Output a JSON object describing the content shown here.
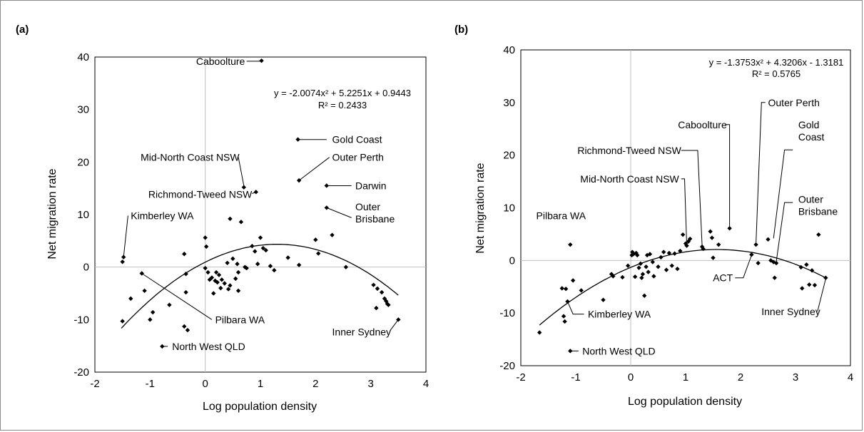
{
  "chart_data": [
    {
      "type": "scatter",
      "panel_label": "(a)",
      "xlabel": "Log population density",
      "ylabel": "Net migration rate",
      "xlim": [
        -2,
        4
      ],
      "ylim": [
        -20,
        40
      ],
      "xticks": [
        -2,
        -1,
        0,
        1,
        2,
        3,
        4
      ],
      "yticks": [
        -20,
        -10,
        0,
        10,
        20,
        30,
        40
      ],
      "trendline": {
        "kind": "polynomial-2",
        "coefficients": [
          -2.0074,
          5.2251,
          0.9443
        ],
        "x_range": [
          -1.52,
          3.5
        ],
        "equation": "y = -2.0074x² + 5.2251x + 0.9443",
        "r2": "R² = 0.2433"
      },
      "points": [
        [
          1.02,
          39.3
        ],
        [
          1.68,
          24.3
        ],
        [
          0.7,
          15.2
        ],
        [
          0.92,
          14.3
        ],
        [
          1.7,
          16.5
        ],
        [
          2.2,
          15.5
        ],
        [
          2.2,
          11.3
        ],
        [
          -1.5,
          1.0
        ],
        [
          -1.48,
          1.9
        ],
        [
          -1.5,
          -10.3
        ],
        [
          -1.35,
          -6.0
        ],
        [
          -1.15,
          -1.2
        ],
        [
          -1.1,
          -4.5
        ],
        [
          -1.0,
          -10.0
        ],
        [
          -0.95,
          -8.6
        ],
        [
          -0.65,
          -7.2
        ],
        [
          -0.38,
          2.5
        ],
        [
          -0.35,
          -1.3
        ],
        [
          -0.35,
          -4.8
        ],
        [
          -0.38,
          -11.3
        ],
        [
          -0.32,
          -12.0
        ],
        [
          0.0,
          5.6
        ],
        [
          0.02,
          3.9
        ],
        [
          0.0,
          -0.2
        ],
        [
          0.05,
          -1.0
        ],
        [
          0.08,
          -2.4
        ],
        [
          0.12,
          -2.0
        ],
        [
          0.15,
          -5.0
        ],
        [
          0.18,
          -2.6
        ],
        [
          0.2,
          -1.0
        ],
        [
          0.22,
          -2.9
        ],
        [
          0.25,
          -1.5
        ],
        [
          0.28,
          -4.0
        ],
        [
          0.3,
          -2.4
        ],
        [
          0.35,
          -3.1
        ],
        [
          0.4,
          0.8
        ],
        [
          0.42,
          -4.2
        ],
        [
          0.45,
          -3.5
        ],
        [
          0.45,
          9.2
        ],
        [
          0.5,
          1.6
        ],
        [
          0.55,
          -2.2
        ],
        [
          0.58,
          0.6
        ],
        [
          0.6,
          -1.0
        ],
        [
          0.6,
          -4.5
        ],
        [
          0.65,
          8.6
        ],
        [
          0.72,
          0.0
        ],
        [
          0.75,
          -0.2
        ],
        [
          0.85,
          4.0
        ],
        [
          0.9,
          3.0
        ],
        [
          0.95,
          0.6
        ],
        [
          1.0,
          5.6
        ],
        [
          1.05,
          3.6
        ],
        [
          1.1,
          3.2
        ],
        [
          1.18,
          0.2
        ],
        [
          1.25,
          -0.6
        ],
        [
          1.5,
          1.8
        ],
        [
          1.7,
          0.4
        ],
        [
          2.0,
          5.2
        ],
        [
          2.05,
          2.6
        ],
        [
          2.3,
          6.1
        ],
        [
          2.55,
          0.0
        ],
        [
          3.05,
          -3.4
        ],
        [
          3.1,
          -7.8
        ],
        [
          3.12,
          -4.1
        ],
        [
          3.2,
          -4.8
        ],
        [
          3.25,
          -6.0
        ],
        [
          3.28,
          -6.5
        ],
        [
          3.3,
          -7.0
        ],
        [
          3.32,
          -7.2
        ],
        [
          3.5,
          -10.0
        ],
        [
          -0.78,
          -15.1
        ]
      ],
      "annotations": [
        {
          "text": "Caboolture",
          "point": [
            1.02,
            39.3
          ],
          "label_at": [
            0.72,
            39.2
          ],
          "anchor": "end",
          "lines": [
            "Caboolture"
          ],
          "leader": [
            [
              0.75,
              39.2
            ],
            [
              1.0,
              39.2
            ]
          ]
        },
        {
          "text": "Gold Coast",
          "point": [
            1.68,
            24.3
          ],
          "label_at": [
            2.3,
            24.3
          ],
          "anchor": "start",
          "lines": [
            "Gold Coast"
          ],
          "leader": [
            [
              1.68,
              24.3
            ],
            [
              2.2,
              24.3
            ]
          ]
        },
        {
          "text": "Mid-North Coast NSW",
          "point": [
            0.7,
            15.2
          ],
          "label_at": [
            0.62,
            20.9
          ],
          "anchor": "end",
          "lines": [
            "Mid-North Coast NSW"
          ],
          "leader": [
            [
              0.6,
              20.9
            ],
            [
              0.7,
              15.5
            ]
          ]
        },
        {
          "text": "Outer Perth",
          "point": [
            1.7,
            16.5
          ],
          "label_at": [
            2.3,
            20.9
          ],
          "anchor": "start",
          "lines": [
            "Outer Perth"
          ],
          "leader": [
            [
              1.7,
              16.5
            ],
            [
              2.25,
              20.9
            ]
          ]
        },
        {
          "text": "Richmond-Tweed NSW",
          "point": [
            0.92,
            14.3
          ],
          "label_at": [
            0.85,
            13.9
          ],
          "anchor": "end",
          "lines": [
            "Richmond-Tweed NSW"
          ],
          "leader": [
            [
              0.85,
              14.0
            ],
            [
              0.92,
              14.3
            ]
          ]
        },
        {
          "text": "Darwin",
          "point": [
            2.2,
            15.5
          ],
          "label_at": [
            2.72,
            15.5
          ],
          "anchor": "start",
          "lines": [
            "Darwin"
          ],
          "leader": [
            [
              2.2,
              15.5
            ],
            [
              2.65,
              15.5
            ]
          ]
        },
        {
          "text": "Outer Brisbane",
          "point": [
            2.2,
            11.3
          ],
          "label_at": [
            2.72,
            11.5
          ],
          "anchor": "start",
          "lines": [
            "Outer",
            "Brisbane"
          ],
          "leader": [
            [
              2.2,
              11.3
            ],
            [
              2.65,
              9.4
            ]
          ]
        },
        {
          "text": "Kimberley WA",
          "point": [
            -1.48,
            1.9
          ],
          "label_at": [
            -1.35,
            9.8
          ],
          "anchor": "start",
          "lines": [
            "Kimberley WA"
          ],
          "leader": [
            [
              -1.48,
              1.9
            ],
            [
              -1.4,
              9.8
            ]
          ]
        },
        {
          "text": "Pilbara WA",
          "point": [
            -1.15,
            -1.2
          ],
          "label_at": [
            0.18,
            -10.0
          ],
          "anchor": "start",
          "lines": [
            "Pilbara WA"
          ],
          "leader": [
            [
              -1.15,
              -1.2
            ],
            [
              0.12,
              -10.0
            ]
          ]
        },
        {
          "text": "North West QLD",
          "point": [
            -0.78,
            -15.1
          ],
          "label_at": [
            -0.6,
            -15.1
          ],
          "anchor": "start",
          "lines": [
            "North West QLD"
          ],
          "leader": [
            [
              -0.78,
              -15.1
            ],
            [
              -0.68,
              -15.1
            ]
          ]
        },
        {
          "text": "Inner Sydney",
          "point": [
            3.5,
            -10.0
          ],
          "label_at": [
            2.3,
            -12.3
          ],
          "anchor": "start",
          "lines": [
            "Inner Sydney"
          ],
          "leader": [
            [
              3.35,
              -12.1
            ],
            [
              3.5,
              -10.0
            ]
          ]
        }
      ]
    },
    {
      "type": "scatter",
      "panel_label": "(b)",
      "xlabel": "Log population density",
      "ylabel": "Net migration rate",
      "xlim": [
        -2,
        4
      ],
      "ylim": [
        -20,
        40
      ],
      "xticks": [
        -2,
        -1,
        0,
        1,
        2,
        3,
        4
      ],
      "yticks": [
        -20,
        -10,
        0,
        10,
        20,
        30,
        40
      ],
      "trendline": {
        "kind": "polynomial-2",
        "coefficients": [
          -1.3753,
          4.3206,
          -1.3181
        ],
        "x_range": [
          -1.66,
          3.55
        ],
        "equation": "y = -1.3753x² + 4.3206x - 1.3181",
        "r2": "R² = 0.5765"
      },
      "points": [
        [
          -1.66,
          -13.7
        ],
        [
          -1.25,
          -5.3
        ],
        [
          -1.22,
          -10.6
        ],
        [
          -1.2,
          -11.6
        ],
        [
          -1.18,
          -5.4
        ],
        [
          -1.15,
          -7.8
        ],
        [
          -1.1,
          3.0
        ],
        [
          -1.05,
          -3.8
        ],
        [
          -0.9,
          -5.7
        ],
        [
          -0.5,
          -7.5
        ],
        [
          -0.35,
          -2.6
        ],
        [
          -0.32,
          -3.0
        ],
        [
          -0.15,
          -3.2
        ],
        [
          -0.05,
          -1.0
        ],
        [
          0.02,
          1.0
        ],
        [
          0.03,
          1.6
        ],
        [
          0.05,
          1.2
        ],
        [
          0.08,
          -3.1
        ],
        [
          0.1,
          1.4
        ],
        [
          0.12,
          1.0
        ],
        [
          0.15,
          -1.4
        ],
        [
          0.18,
          -0.6
        ],
        [
          0.2,
          -3.3
        ],
        [
          0.22,
          -2.6
        ],
        [
          0.25,
          -6.7
        ],
        [
          0.28,
          -1.2
        ],
        [
          0.3,
          1.0
        ],
        [
          0.32,
          -2.2
        ],
        [
          0.35,
          1.2
        ],
        [
          0.4,
          -0.3
        ],
        [
          0.42,
          -3.0
        ],
        [
          0.5,
          -1.2
        ],
        [
          0.55,
          0.6
        ],
        [
          0.6,
          1.6
        ],
        [
          0.65,
          -1.8
        ],
        [
          0.7,
          1.4
        ],
        [
          0.75,
          -1.0
        ],
        [
          0.8,
          1.3
        ],
        [
          0.85,
          -1.6
        ],
        [
          0.9,
          1.8
        ],
        [
          0.95,
          4.9
        ],
        [
          1.0,
          3.2
        ],
        [
          1.02,
          2.8
        ],
        [
          1.05,
          3.6
        ],
        [
          1.08,
          4.1
        ],
        [
          1.3,
          2.6
        ],
        [
          1.32,
          2.2
        ],
        [
          1.45,
          5.5
        ],
        [
          1.48,
          4.3
        ],
        [
          1.5,
          0.5
        ],
        [
          1.6,
          3.0
        ],
        [
          1.8,
          6.1
        ],
        [
          2.2,
          1.1
        ],
        [
          2.28,
          3.0
        ],
        [
          2.32,
          -0.5
        ],
        [
          2.5,
          4.0
        ],
        [
          2.55,
          0.0
        ],
        [
          2.6,
          -0.3
        ],
        [
          2.62,
          -3.3
        ],
        [
          2.65,
          -0.5
        ],
        [
          3.1,
          -1.3
        ],
        [
          3.12,
          -5.3
        ],
        [
          3.2,
          -0.8
        ],
        [
          3.25,
          -4.6
        ],
        [
          3.3,
          -1.9
        ],
        [
          3.35,
          -4.7
        ],
        [
          3.42,
          4.9
        ],
        [
          3.55,
          -3.3
        ],
        [
          -1.1,
          -17.2
        ]
      ],
      "annotations": [
        {
          "text": "Caboolture",
          "point": [
            1.8,
            6.1
          ],
          "label_at": [
            1.75,
            25.8
          ],
          "anchor": "end",
          "lines": [
            "Caboolture"
          ],
          "leader": [
            [
              1.72,
              25.8
            ],
            [
              1.8,
              25.8
            ],
            [
              1.8,
              6.3
            ]
          ]
        },
        {
          "text": "Outer Perth",
          "point": [
            2.28,
            3.0
          ],
          "label_at": [
            2.5,
            30.0
          ],
          "anchor": "start",
          "lines": [
            "Outer Perth"
          ],
          "leader": [
            [
              2.45,
              30.0
            ],
            [
              2.38,
              30.0
            ],
            [
              2.28,
              3.2
            ]
          ]
        },
        {
          "text": "Gold Coast",
          "point": [
            2.55,
            4.0
          ],
          "label_at": [
            3.05,
            25.8
          ],
          "anchor": "start",
          "lines": [
            "Gold",
            "Coast"
          ],
          "leader": [
            [
              2.95,
              21.0
            ],
            [
              2.8,
              21.0
            ],
            [
              2.6,
              4.2
            ]
          ]
        },
        {
          "text": "Richmond-Tweed NSW",
          "point": [
            1.3,
            2.6
          ],
          "label_at": [
            0.92,
            20.9
          ],
          "anchor": "end",
          "lines": [
            "Richmond-Tweed NSW"
          ],
          "leader": [
            [
              0.92,
              20.9
            ],
            [
              1.22,
              20.9
            ],
            [
              1.3,
              2.8
            ]
          ]
        },
        {
          "text": "Mid-North Coast NSW",
          "point": [
            1.02,
            2.8
          ],
          "label_at": [
            0.88,
            15.5
          ],
          "anchor": "end",
          "lines": [
            "Mid-North Coast NSW"
          ],
          "leader": [
            [
              0.92,
              15.5
            ],
            [
              0.98,
              15.5
            ],
            [
              1.02,
              3.0
            ]
          ]
        },
        {
          "text": "Outer Brisbane",
          "point": [
            2.65,
            -0.5
          ],
          "label_at": [
            3.05,
            11.6
          ],
          "anchor": "start",
          "lines": [
            "Outer",
            "Brisbane"
          ],
          "leader": [
            [
              2.95,
              11.0
            ],
            [
              2.8,
              11.0
            ],
            [
              2.65,
              -0.3
            ]
          ]
        },
        {
          "text": "Pilbara WA",
          "point": [
            -1.1,
            3.0
          ],
          "label_at": [
            -1.72,
            8.5
          ],
          "anchor": "start",
          "lines": [
            "Pilbara WA"
          ],
          "leader": []
        },
        {
          "text": "ACT",
          "point": [
            2.2,
            1.1
          ],
          "label_at": [
            1.86,
            -3.3
          ],
          "anchor": "end",
          "lines": [
            "ACT"
          ],
          "leader": [
            [
              1.9,
              -3.3
            ],
            [
              2.05,
              -3.3
            ],
            [
              2.2,
              1.0
            ]
          ]
        },
        {
          "text": "Kimberley WA",
          "point": [
            -1.15,
            -7.8
          ],
          "label_at": [
            -0.78,
            -10.2
          ],
          "anchor": "start",
          "lines": [
            "Kimberley WA"
          ],
          "leader": [
            [
              -1.15,
              -7.8
            ],
            [
              -1.05,
              -10.2
            ],
            [
              -0.85,
              -10.2
            ]
          ]
        },
        {
          "text": "Inner Sydney",
          "point": [
            3.55,
            -3.3
          ],
          "label_at": [
            2.38,
            -9.7
          ],
          "anchor": "start",
          "lines": [
            "Inner Sydney"
          ],
          "leader": [
            [
              3.4,
              -9.7
            ],
            [
              3.55,
              -3.5
            ]
          ]
        },
        {
          "text": "North West QLD",
          "point": [
            -1.1,
            -17.2
          ],
          "label_at": [
            -0.88,
            -17.2
          ],
          "anchor": "start",
          "lines": [
            "North West QLD"
          ],
          "leader": [
            [
              -1.1,
              -17.2
            ],
            [
              -0.95,
              -17.2
            ]
          ]
        }
      ]
    }
  ]
}
